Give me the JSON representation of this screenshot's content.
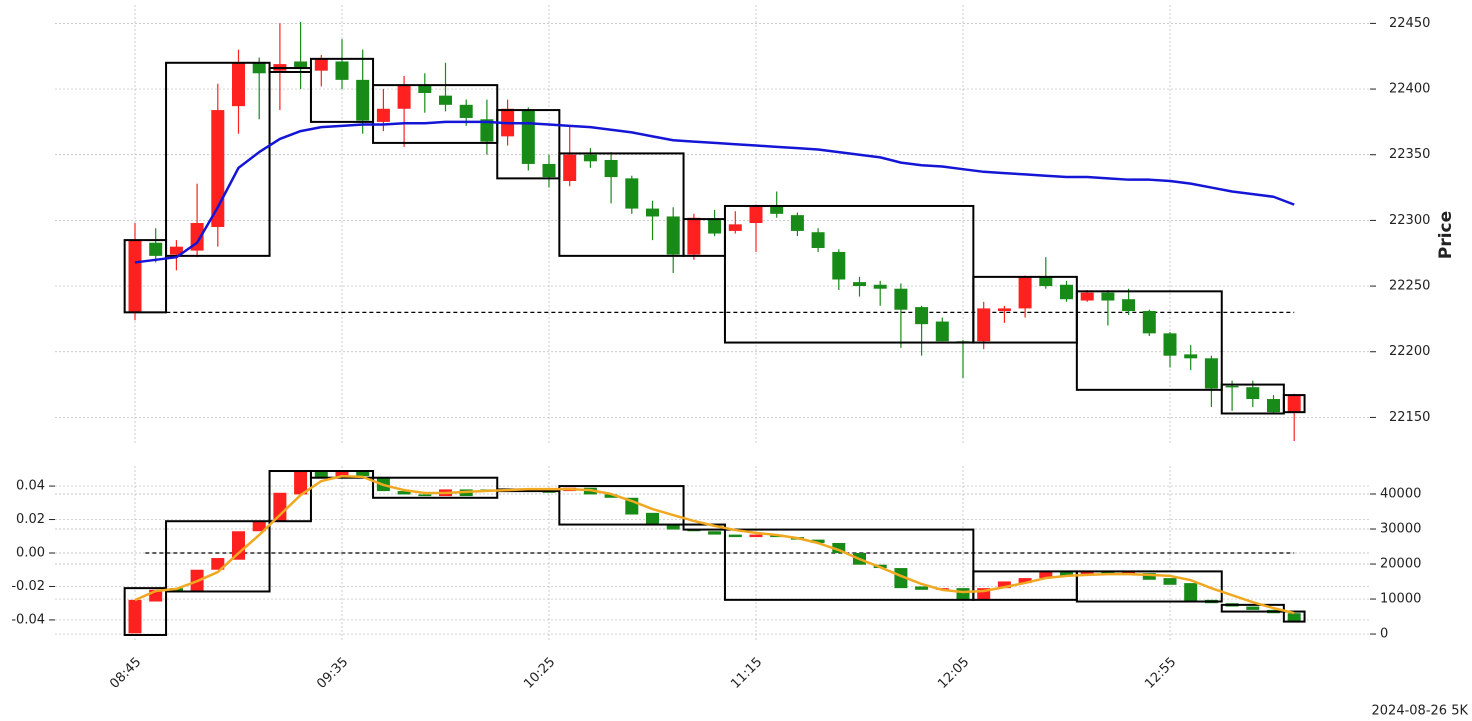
{
  "chart_data": [
    {
      "type": "candlestick",
      "ylabel": "Price",
      "categories": [
        "08:45",
        null,
        null,
        null,
        null,
        null,
        null,
        null,
        null,
        null,
        "09:35",
        null,
        null,
        null,
        null,
        null,
        null,
        null,
        null,
        null,
        "10:25",
        null,
        null,
        null,
        null,
        null,
        null,
        null,
        null,
        null,
        "11:15",
        null,
        null,
        null,
        null,
        null,
        null,
        null,
        null,
        null,
        "12:05",
        null,
        null,
        null,
        null,
        null,
        null,
        null,
        null,
        null,
        "12:55",
        null,
        null,
        null,
        null,
        null,
        null
      ],
      "open": [
        22230,
        22283,
        22274,
        22277,
        22295,
        22387,
        22420,
        22414,
        22421,
        22414,
        22421,
        22407,
        22375,
        22385,
        22403,
        22395,
        22388,
        22377,
        22364,
        22384,
        22343,
        22330,
        22350,
        22346,
        22332,
        22309,
        22303,
        22274,
        22301,
        22292,
        22298,
        22311,
        22304,
        22291,
        22276,
        22253,
        22251,
        22248,
        22234,
        22223,
        22208,
        22208,
        22231,
        22233,
        22257,
        22251,
        22239,
        22245,
        22240,
        22231,
        22214,
        22198,
        22195,
        22174,
        22173,
        22164,
        22154
      ],
      "high": [
        22298,
        22294,
        22285,
        22328,
        22404,
        22430,
        22424,
        22450,
        22451,
        22426,
        22438,
        22430,
        22400,
        22410,
        22412,
        22420,
        22392,
        22392,
        22392,
        22386,
        22350,
        22372,
        22355,
        22352,
        22334,
        22315,
        22310,
        22305,
        22308,
        22307,
        22312,
        22322,
        22306,
        22294,
        22278,
        22257,
        22254,
        22252,
        22235,
        22226,
        22209,
        22238,
        22235,
        22258,
        22272,
        22254,
        22247,
        22247,
        22248,
        22232,
        22215,
        22205,
        22197,
        22178,
        22178,
        22167,
        22168
      ],
      "low": [
        22224,
        22268,
        22262,
        22272,
        22280,
        22366,
        22377,
        22384,
        22400,
        22402,
        22400,
        22366,
        22368,
        22356,
        22382,
        22383,
        22372,
        22350,
        22357,
        22338,
        22325,
        22326,
        22340,
        22313,
        22305,
        22285,
        22260,
        22270,
        22288,
        22290,
        22276,
        22302,
        22288,
        22276,
        22247,
        22242,
        22235,
        22203,
        22197,
        22208,
        22180,
        22202,
        22222,
        22226,
        22248,
        22238,
        22238,
        22220,
        22228,
        22212,
        22188,
        22186,
        22158,
        22155,
        22158,
        22153,
        22132
      ],
      "close": [
        22285,
        22273,
        22280,
        22298,
        22384,
        22420,
        22412,
        22419,
        22416,
        22423,
        22407,
        22376,
        22385,
        22403,
        22397,
        22388,
        22378,
        22360,
        22385,
        22343,
        22333,
        22350,
        22345,
        22333,
        22309,
        22303,
        22274,
        22302,
        22290,
        22297,
        22311,
        22305,
        22292,
        22279,
        22255,
        22250,
        22248,
        22232,
        22221,
        22208,
        22207,
        22233,
        22233,
        22257,
        22250,
        22240,
        22245,
        22239,
        22231,
        22214,
        22197,
        22195,
        22172,
        22173,
        22164,
        22154,
        22167
      ],
      "up_color": "#ff2020",
      "down_color": "#178a17",
      "line": {
        "color": "#1515d5",
        "values": [
          22268,
          22270,
          22272,
          22283,
          22310,
          22340,
          22352,
          22362,
          22368,
          22371,
          22372,
          22373,
          22373,
          22374,
          22374,
          22375,
          22375,
          22375,
          22374,
          22374,
          22373,
          22372,
          22371,
          22369,
          22367,
          22364,
          22361,
          22360,
          22359,
          22358,
          22357,
          22356,
          22355,
          22354,
          22352,
          22350,
          22348,
          22344,
          22342,
          22341,
          22339,
          22337,
          22336,
          22335,
          22334,
          22333,
          22333,
          22332,
          22331,
          22331,
          22330,
          22328,
          22325,
          22322,
          22320,
          22318,
          22312
        ]
      },
      "boxes": [
        {
          "from": -0.5,
          "to": 1.5,
          "low": 22230,
          "high": 22285
        },
        {
          "from": 1.5,
          "to": 6.5,
          "low": 22273,
          "high": 22420
        },
        {
          "from": 6.5,
          "to": 8.5,
          "low": 22413,
          "high": 22416
        },
        {
          "from": 8.5,
          "to": 11.5,
          "low": 22375,
          "high": 22423
        },
        {
          "from": 11.5,
          "to": 17.5,
          "low": 22359,
          "high": 22403
        },
        {
          "from": 17.5,
          "to": 20.5,
          "low": 22332,
          "high": 22384
        },
        {
          "from": 20.5,
          "to": 26.5,
          "low": 22273,
          "high": 22351
        },
        {
          "from": 26.5,
          "to": 28.5,
          "low": 22273,
          "high": 22301
        },
        {
          "from": 28.5,
          "to": 40.5,
          "low": 22207,
          "high": 22311
        },
        {
          "from": 40.5,
          "to": 45.5,
          "low": 22207,
          "high": 22257
        },
        {
          "from": 45.5,
          "to": 52.5,
          "low": 22171,
          "high": 22246
        },
        {
          "from": 52.5,
          "to": 55.5,
          "low": 22153,
          "high": 22175
        },
        {
          "from": 55.5,
          "to": 56.5,
          "low": 22154,
          "high": 22167
        }
      ],
      "hline": 22230,
      "ylim": [
        22129,
        22464
      ],
      "yticks": [
        22150,
        22200,
        22250,
        22300,
        22350,
        22400,
        22450
      ],
      "grid": true
    },
    {
      "type": "candlestick",
      "open": [
        -0.048,
        -0.029,
        -0.021,
        -0.023,
        -0.01,
        -0.004,
        0.013,
        0.019,
        0.035,
        0.049,
        0.045,
        0.049,
        0.045,
        0.037,
        0.035,
        0.034,
        0.038,
        0.038,
        0.037,
        0.038,
        0.038,
        0.037,
        0.039,
        0.035,
        0.033,
        0.024,
        0.017,
        0.014,
        0.013,
        0.011,
        0.0095,
        0.011,
        0.0095,
        0.008,
        0.006,
        0.0,
        -0.007,
        -0.009,
        -0.02,
        -0.022,
        -0.021,
        -0.028,
        -0.021,
        -0.018,
        -0.015,
        -0.011,
        -0.013,
        -0.011,
        -0.013,
        -0.012,
        -0.015,
        -0.018,
        -0.028,
        -0.03,
        -0.032,
        -0.034,
        -0.036
      ],
      "close": [
        -0.028,
        -0.022,
        -0.023,
        -0.01,
        -0.003,
        0.013,
        0.019,
        0.036,
        0.049,
        0.045,
        0.049,
        0.046,
        0.037,
        0.035,
        0.034,
        0.038,
        0.034,
        0.037,
        0.038,
        0.037,
        0.036,
        0.039,
        0.035,
        0.033,
        0.023,
        0.017,
        0.014,
        0.013,
        0.011,
        0.0095,
        0.011,
        0.0095,
        0.008,
        0.006,
        0.0,
        -0.007,
        -0.009,
        -0.021,
        -0.022,
        -0.021,
        -0.028,
        -0.021,
        -0.017,
        -0.015,
        -0.011,
        -0.014,
        -0.011,
        -0.013,
        -0.011,
        -0.016,
        -0.019,
        -0.029,
        -0.03,
        -0.032,
        -0.034,
        -0.036,
        -0.041
      ],
      "up_color": "#ff2020",
      "down_color": "#178a17",
      "line": {
        "color": "#f0a820",
        "axis": "y2",
        "values": [
          9700,
          12300,
          12900,
          15100,
          17700,
          23100,
          28300,
          34000,
          39700,
          43700,
          45100,
          44900,
          42600,
          41100,
          40300,
          40300,
          40600,
          40900,
          41100,
          41400,
          41400,
          41400,
          41100,
          40000,
          38000,
          35700,
          34000,
          32300,
          30900,
          29700,
          28900,
          28300,
          27400,
          26000,
          24000,
          21400,
          19100,
          16600,
          14300,
          12600,
          12000,
          12300,
          13400,
          14600,
          16000,
          16600,
          16900,
          17100,
          17100,
          16900,
          16600,
          15400,
          13100,
          11100,
          9100,
          7400,
          6000
        ]
      },
      "boxes": [
        {
          "from": -0.5,
          "to": 1.5,
          "low": -0.049,
          "high": -0.021
        },
        {
          "from": 1.5,
          "to": 6.5,
          "low": -0.023,
          "high": 0.019
        },
        {
          "from": 6.5,
          "to": 8.5,
          "low": 0.019,
          "high": 0.049
        },
        {
          "from": 8.5,
          "to": 11.5,
          "low": 0.045,
          "high": 0.049
        },
        {
          "from": 11.5,
          "to": 17.5,
          "low": 0.033,
          "high": 0.045
        },
        {
          "from": 17.5,
          "to": 20.5,
          "low": 0.037,
          "high": 0.038
        },
        {
          "from": 20.5,
          "to": 26.5,
          "low": 0.017,
          "high": 0.04
        },
        {
          "from": 26.5,
          "to": 28.5,
          "low": 0.014,
          "high": 0.017
        },
        {
          "from": 28.5,
          "to": 40.5,
          "low": -0.028,
          "high": 0.014
        },
        {
          "from": 40.5,
          "to": 45.5,
          "low": -0.028,
          "high": -0.011
        },
        {
          "from": 45.5,
          "to": 52.5,
          "low": -0.029,
          "high": -0.011
        },
        {
          "from": 52.5,
          "to": 55.5,
          "low": -0.035,
          "high": -0.031
        },
        {
          "from": 55.5,
          "to": 56.5,
          "low": -0.041,
          "high": -0.035
        }
      ],
      "hline": 0,
      "ylim": [
        -0.052,
        0.052
      ],
      "yticks": [
        -0.04,
        -0.02,
        {
          "value": 0,
          "label": "0.00"
        },
        0.02,
        0.04
      ],
      "y2lim": [
        -1700,
        48000
      ],
      "y2ticks": [
        0,
        10000,
        20000,
        30000,
        40000
      ],
      "grid": true
    }
  ],
  "footer": "2024-08-26 5K"
}
